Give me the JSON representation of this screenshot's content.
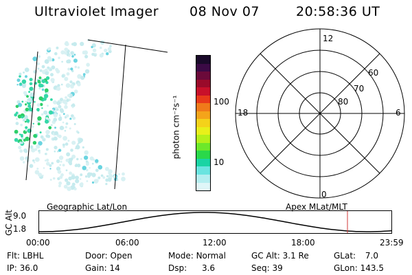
{
  "header": {
    "title": "Ultraviolet Imager",
    "date": "08 Nov 07",
    "time": "20:58:36 UT"
  },
  "colorbar": {
    "unit_label": "photon cm⁻²s⁻¹",
    "ticks": [
      "100",
      "10"
    ],
    "colors": [
      "#1a0a2a",
      "#3b0a45",
      "#6b0a3a",
      "#9a0a2a",
      "#c8102a",
      "#e83a1a",
      "#f07a1a",
      "#f4a41a",
      "#f4d21a",
      "#e8f01a",
      "#b4f01a",
      "#6ce82a",
      "#2ad84a",
      "#1ad4a4",
      "#6ae4e0",
      "#b4eef0",
      "#dff6f8"
    ]
  },
  "polar_plot": {
    "mlt_labels": {
      "top": "12",
      "left": "18",
      "right": "6",
      "bottom": "0"
    },
    "lat_labels": [
      "60",
      "70",
      "80"
    ]
  },
  "timeline": {
    "left_title": "Geographic Lat/Lon",
    "right_title": "Apex  MLat/MLT",
    "axis_label": "GC Alt",
    "y_ticks": [
      "9.0",
      "1.8"
    ],
    "time_ticks": [
      "00:00",
      "06:00",
      "12:00",
      "18:00",
      "23:59"
    ],
    "marker_color": "#d23a3a"
  },
  "footer": {
    "row1": [
      {
        "label": "Flt:",
        "value": "LBHL"
      },
      {
        "label": "Door:",
        "value": "Open"
      },
      {
        "label": "Mode:",
        "value": "Normal"
      },
      {
        "label": "GC Alt:",
        "value": "3.1 Re"
      },
      {
        "label": "GLat:",
        "value": "7.0"
      }
    ],
    "row2": [
      {
        "label": "IP:",
        "value": "36.0"
      },
      {
        "label": "Gain:",
        "value": "14"
      },
      {
        "label": "Dsp:",
        "value": "3.6"
      },
      {
        "label": "Seq:",
        "value": "39"
      },
      {
        "label": "GLon:",
        "value": "143.5"
      }
    ]
  }
}
